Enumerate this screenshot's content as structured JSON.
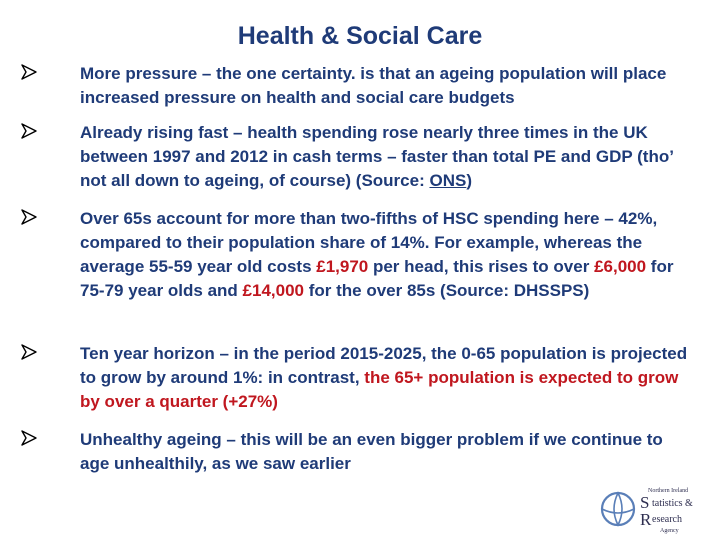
{
  "page": {
    "title": "Health & Social Care"
  },
  "bullets": [
    {
      "head": "More pressure",
      "body": " – the one certainty. is that an ageing population will place increased pressure on health and social care budgets"
    },
    {
      "head": "Already rising fast",
      "body_a": " – health spending rose nearly three times in the UK between 1997 and 2012 in cash terms – faster than total PE and GDP (tho’ not all down to ageing, of course) (Source: ",
      "link": "ONS",
      "body_b": ")"
    },
    {
      "p1": "Over 65s account for more than two-fifths of HSC spending here – 42%,  compared to their population share of 14%.  For example, whereas the average 55-59 year old costs ",
      "v1": "£1,970",
      "p2": " per head, this rises to over ",
      "v2": "£6,000",
      "p3": " for 75-79 year olds and ",
      "v3": "£14,000",
      "p4": " for the over 85s (Source: DHSSPS)"
    },
    {
      "head": "Ten year horizon",
      "body": " – in the period 2015-2025, the 0-65 population is projected to grow by around 1%: in contrast, ",
      "emph": "the 65+ population is expected to grow by over a quarter (+27%)"
    },
    {
      "head": "Unhealthy ageing",
      "body": " – this will be an even bigger problem if we continue to age unhealthily, as we saw earlier"
    }
  ],
  "logo": {
    "small": "Northern Ireland",
    "s1": "S",
    "w1": "tatistics &",
    "r1": "R",
    "w2": "esearch",
    "w3": "Agency"
  },
  "colors": {
    "text": "#1f3b78",
    "accent": "#c0171f"
  }
}
